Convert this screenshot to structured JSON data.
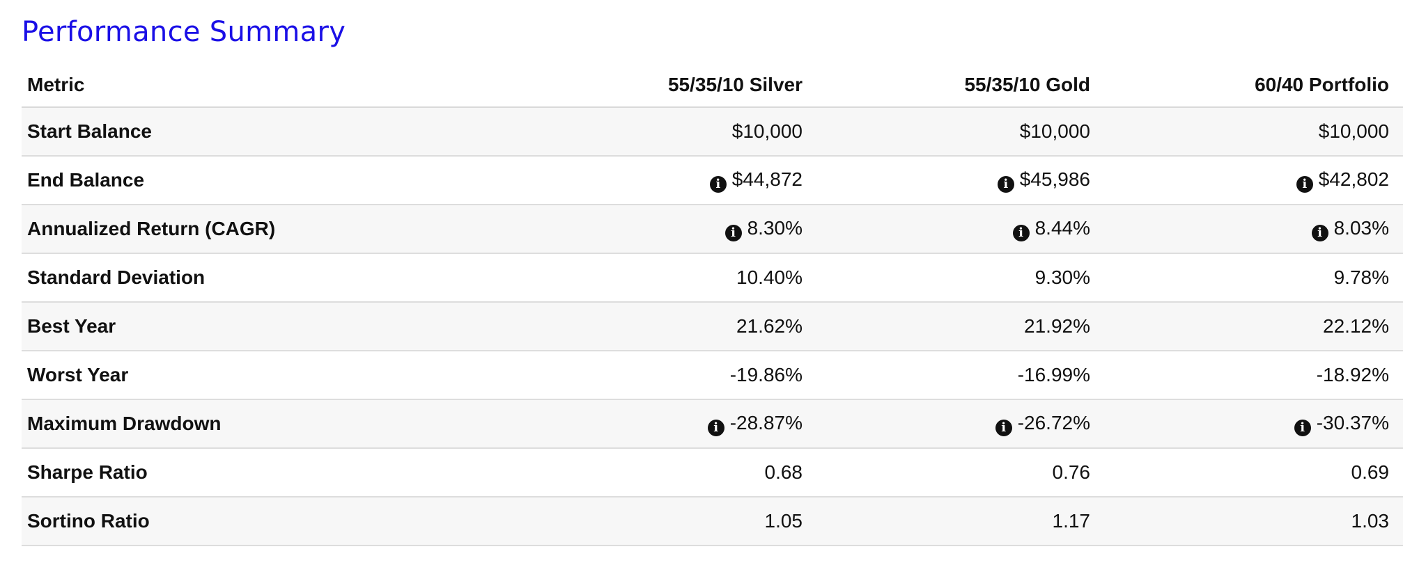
{
  "title": "Performance Summary",
  "table": {
    "headers": [
      "Metric",
      "55/35/10 Silver",
      "55/35/10 Gold",
      "60/40 Portfolio"
    ],
    "rows": [
      {
        "metric": "Start Balance",
        "values": [
          "$10,000",
          "$10,000",
          "$10,000"
        ],
        "info": false
      },
      {
        "metric": "End Balance",
        "values": [
          "$44,872",
          "$45,986",
          "$42,802"
        ],
        "info": true
      },
      {
        "metric": "Annualized Return (CAGR)",
        "values": [
          "8.30%",
          "8.44%",
          "8.03%"
        ],
        "info": true
      },
      {
        "metric": "Standard Deviation",
        "values": [
          "10.40%",
          "9.30%",
          "9.78%"
        ],
        "info": false
      },
      {
        "metric": "Best Year",
        "values": [
          "21.62%",
          "21.92%",
          "22.12%"
        ],
        "info": false
      },
      {
        "metric": "Worst Year",
        "values": [
          "-19.86%",
          "-16.99%",
          "-18.92%"
        ],
        "info": false
      },
      {
        "metric": "Maximum Drawdown",
        "values": [
          "-28.87%",
          "-26.72%",
          "-30.37%"
        ],
        "info": true
      },
      {
        "metric": "Sharpe Ratio",
        "values": [
          "0.68",
          "0.76",
          "0.69"
        ],
        "info": false
      },
      {
        "metric": "Sortino Ratio",
        "values": [
          "1.05",
          "1.17",
          "1.03"
        ],
        "info": false
      }
    ]
  },
  "icons": {
    "info": "info-circle-icon",
    "info_glyph": "i"
  },
  "colors": {
    "title": "#1a0fe6",
    "text": "#111111",
    "row_stripe": "#f7f7f7",
    "row_border": "#dddddd"
  }
}
